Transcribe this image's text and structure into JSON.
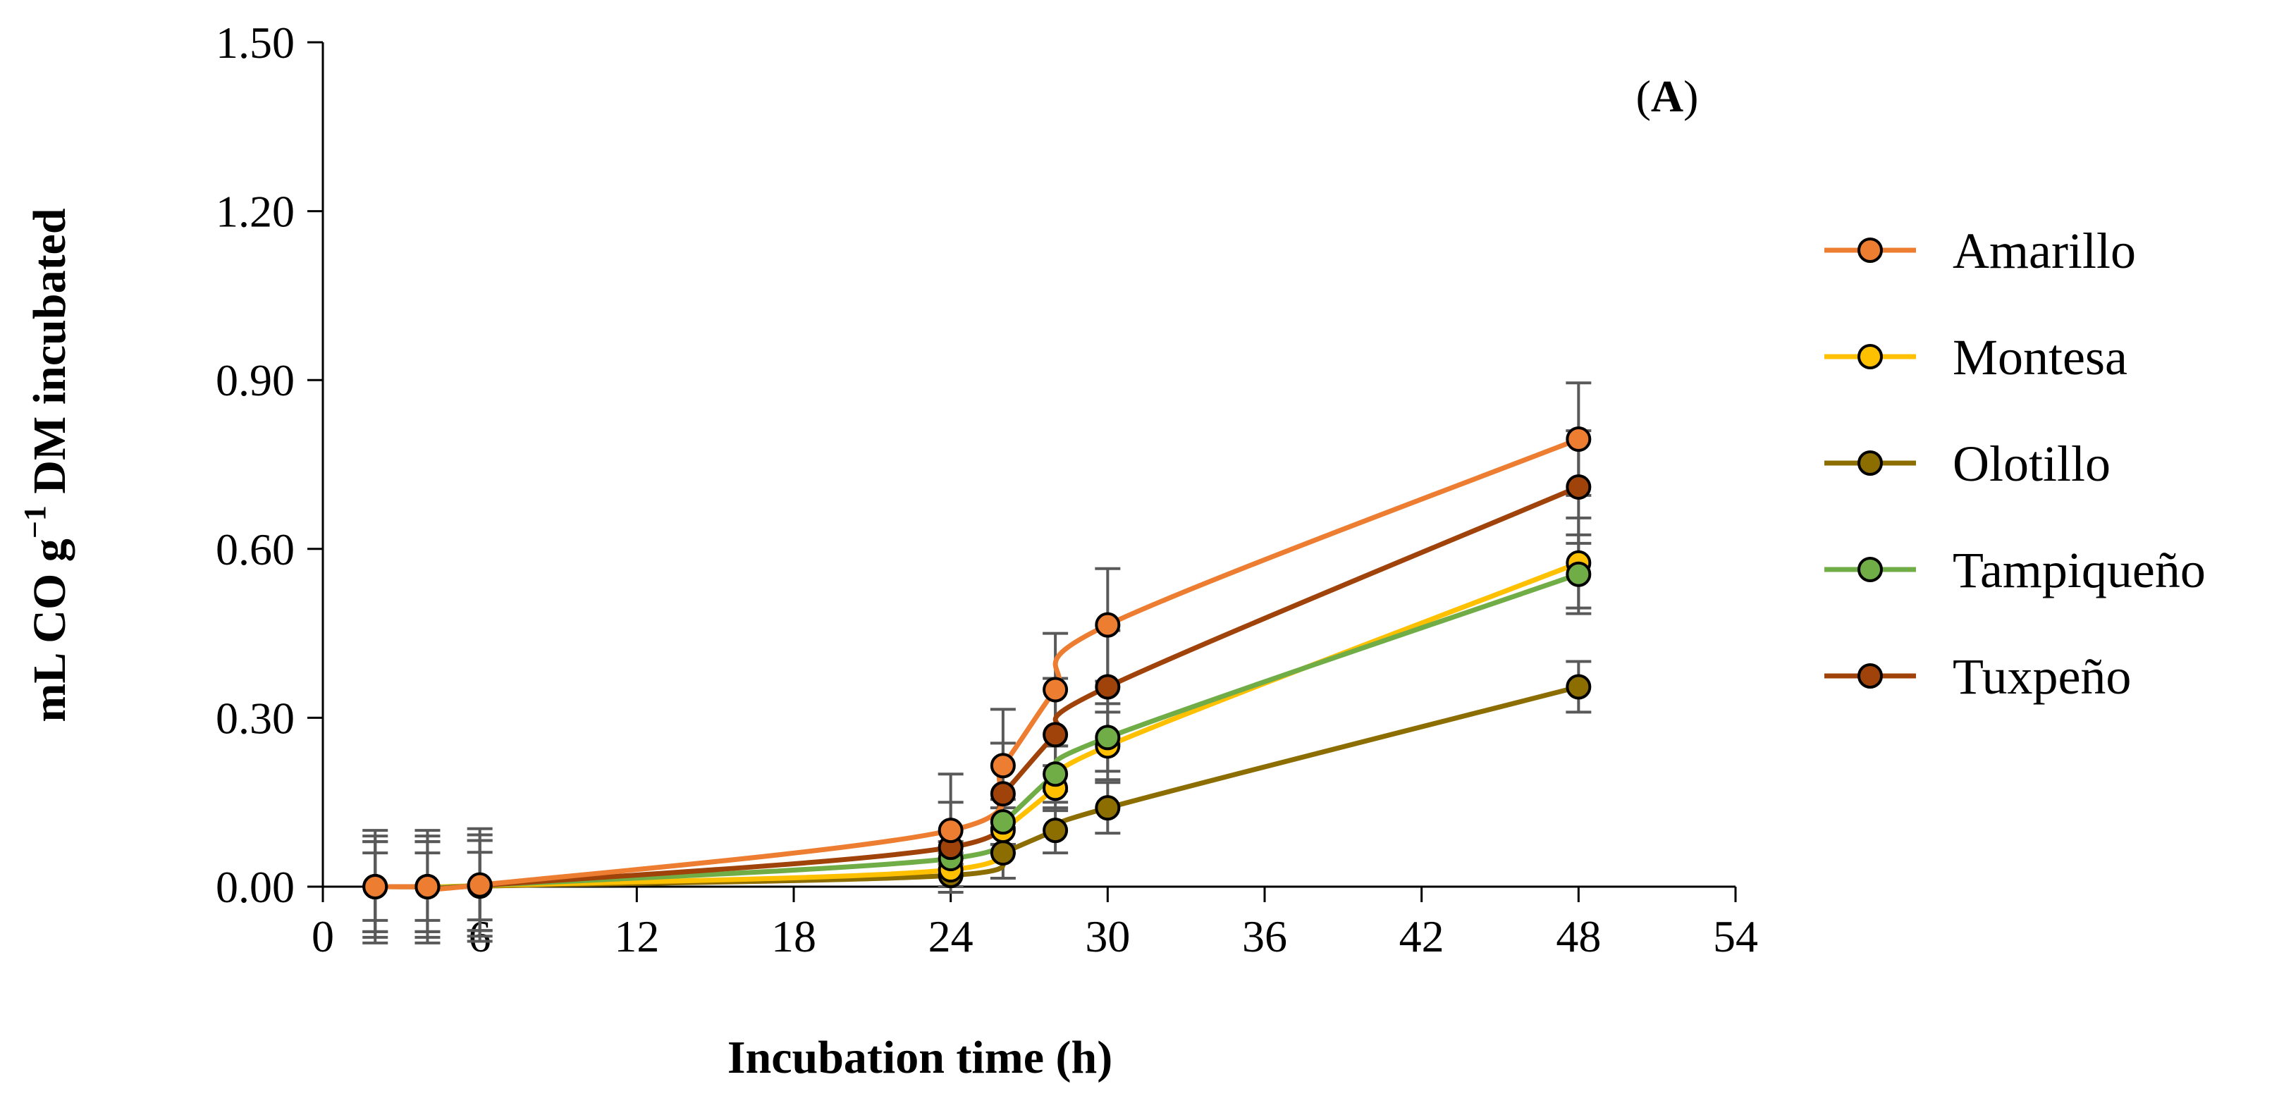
{
  "chart_data": {
    "type": "line",
    "title": "",
    "panel_label": {
      "open": "(",
      "letter": "A",
      "close": ")"
    },
    "xlabel": "Incubation time (h)",
    "ylabel": {
      "prefix": "mL CO g",
      "superscript": "−1",
      "suffix": " DM incubated"
    },
    "xlim": [
      0,
      54
    ],
    "ylim": [
      0,
      1.5
    ],
    "xticks": [
      0,
      6,
      12,
      18,
      24,
      30,
      36,
      42,
      48,
      54
    ],
    "xtick_labels": [
      "0",
      "6",
      "12",
      "18",
      "24",
      "30",
      "36",
      "42",
      "48",
      "54"
    ],
    "yticks": [
      0,
      0.3,
      0.6,
      0.9,
      1.2,
      1.5
    ],
    "ytick_labels": [
      "0.00",
      "0.30",
      "0.60",
      "0.90",
      "1.20",
      "1.50"
    ],
    "grid": false,
    "legend_position": "right",
    "x": [
      2,
      4,
      6,
      24,
      26,
      28,
      30,
      48
    ],
    "series": [
      {
        "name": "Amarillo",
        "color": "#ED7D31",
        "values": [
          0,
          0,
          0.003,
          0.1,
          0.215,
          0.35,
          0.465,
          0.795
        ],
        "errors": [
          0.1,
          0.1,
          0.1,
          0.1,
          0.1,
          0.1,
          0.1,
          0.1
        ]
      },
      {
        "name": "Montesa",
        "color": "#FFC000",
        "values": [
          0,
          0,
          0.002,
          0.03,
          0.1,
          0.175,
          0.25,
          0.575
        ],
        "errors": [
          0.08,
          0.08,
          0.08,
          0.03,
          0.04,
          0.04,
          0.06,
          0.08
        ]
      },
      {
        "name": "Olotillo",
        "color": "#8C6D00",
        "values": [
          0,
          0,
          0.001,
          0.02,
          0.06,
          0.1,
          0.14,
          0.355
        ],
        "errors": [
          0.06,
          0.06,
          0.06,
          0.02,
          0.045,
          0.04,
          0.045,
          0.045
        ]
      },
      {
        "name": "Tampiqueño",
        "color": "#70AD47",
        "values": [
          0,
          0,
          0.002,
          0.05,
          0.115,
          0.2,
          0.265,
          0.555
        ],
        "errors": [
          0.08,
          0.08,
          0.08,
          0.03,
          0.04,
          0.05,
          0.06,
          0.07
        ]
      },
      {
        "name": "Tuxpeño",
        "color": "#A0430A",
        "values": [
          0,
          0,
          0.002,
          0.07,
          0.165,
          0.27,
          0.355,
          0.71
        ],
        "errors": [
          0.09,
          0.09,
          0.09,
          0.08,
          0.09,
          0.1,
          0.1,
          0.1
        ]
      }
    ]
  }
}
